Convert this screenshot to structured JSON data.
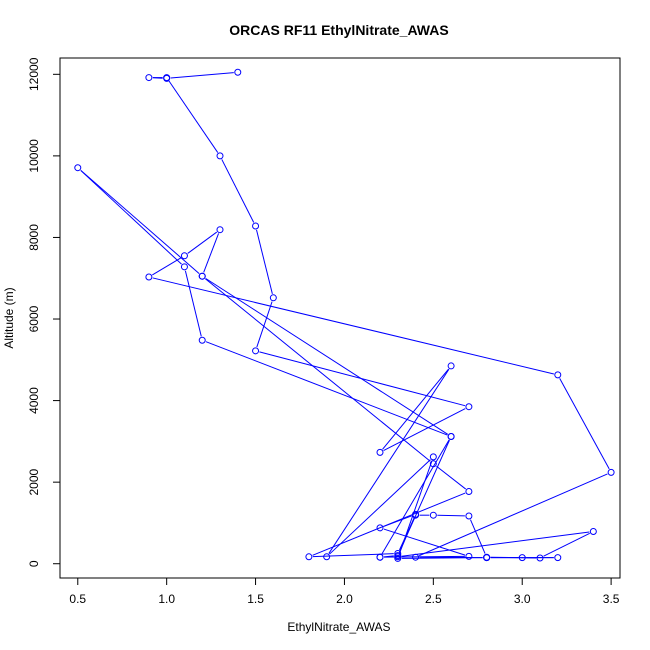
{
  "chart_data": {
    "type": "line",
    "title": "ORCAS RF11 EthylNitrate_AWAS",
    "xlabel": "EthylNitrate_AWAS",
    "ylabel": "Altitude (m)",
    "xlim": [
      0.4,
      3.55
    ],
    "ylim": [
      -350,
      12400
    ],
    "x_ticks": [
      0.5,
      1.0,
      1.5,
      2.0,
      2.5,
      3.0,
      3.5
    ],
    "x_tick_labels": [
      "0.5",
      "1.0",
      "1.5",
      "2.0",
      "2.5",
      "3.0",
      "3.5"
    ],
    "y_ticks": [
      0,
      2000,
      4000,
      6000,
      8000,
      10000,
      12000
    ],
    "y_tick_labels": [
      "0",
      "2000",
      "4000",
      "6000",
      "8000",
      "10000",
      "12000"
    ],
    "grid": false,
    "line_color": "#0000ff",
    "marker": "open-circle",
    "series": [
      {
        "x": [
          1.4,
          1.0,
          0.9,
          1.0,
          1.3,
          1.5,
          1.6,
          1.5,
          2.7,
          2.2,
          2.6,
          1.9,
          2.5,
          2.3,
          2.8,
          3.0,
          3.2,
          2.8,
          2.4,
          3.5,
          3.2,
          0.9,
          1.1,
          1.3,
          1.2,
          2.5,
          2.7,
          1.8,
          2.3,
          2.4,
          2.5,
          2.7,
          2.8,
          3.1,
          3.4,
          2.3,
          2.4,
          2.2,
          2.7,
          2.2,
          2.6,
          1.2,
          1.1,
          0.5,
          1.2,
          2.6,
          2.3,
          2.2
        ],
        "y": [
          12050,
          11900,
          11920,
          11920,
          10000,
          8280,
          6520,
          5220,
          3850,
          2730,
          4850,
          170,
          2620,
          130,
          150,
          150,
          150,
          150,
          160,
          2240,
          4630,
          7030,
          7550,
          8190,
          7050,
          2450,
          1770,
          170,
          250,
          1190,
          1190,
          1170,
          160,
          140,
          790,
          170,
          1210,
          880,
          180,
          160,
          3120,
          5480,
          7280,
          9710,
          7050,
          3120,
          200,
          160
        ]
      }
    ]
  }
}
